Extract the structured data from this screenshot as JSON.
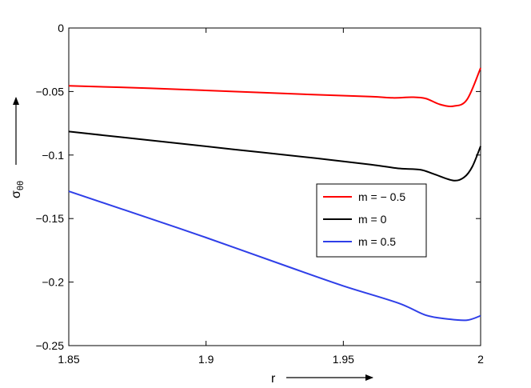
{
  "chart_data": {
    "type": "line",
    "xlabel": "r",
    "ylabel": "σ",
    "ylabel_subscript": "θθ",
    "xlim": [
      1.85,
      2.0
    ],
    "ylim": [
      -0.25,
      0
    ],
    "xticks": [
      1.85,
      1.9,
      1.95,
      2.0
    ],
    "xtick_labels": [
      "1.85",
      "1.9",
      "1.95",
      "2"
    ],
    "yticks": [
      0,
      -0.05,
      -0.1,
      -0.15,
      -0.2,
      -0.25
    ],
    "ytick_labels": [
      "0",
      "−0.05",
      "−0.1",
      "−0.15",
      "−0.2",
      "−0.25"
    ],
    "grid": false,
    "legend_position": "center-right",
    "series": [
      {
        "name": "m = − 0.5",
        "color": "#ff0000",
        "x": [
          1.85,
          1.88,
          1.91,
          1.94,
          1.96,
          1.968,
          1.975,
          1.98,
          1.985,
          1.99,
          1.995,
          2.0
        ],
        "y": [
          -0.0455,
          -0.0475,
          -0.05,
          -0.0525,
          -0.054,
          -0.055,
          -0.0545,
          -0.0555,
          -0.06,
          -0.0615,
          -0.0565,
          -0.0315
        ]
      },
      {
        "name": "m = 0",
        "color": "#000000",
        "x": [
          1.85,
          1.88,
          1.91,
          1.94,
          1.96,
          1.97,
          1.978,
          1.983,
          1.99,
          1.994,
          1.997,
          2.0
        ],
        "y": [
          -0.0815,
          -0.0885,
          -0.0955,
          -0.1025,
          -0.1075,
          -0.1105,
          -0.1115,
          -0.115,
          -0.12,
          -0.1175,
          -0.109,
          -0.093
        ]
      },
      {
        "name": "m = 0.5",
        "color": "#2f3fe8",
        "x": [
          1.85,
          1.87,
          1.9,
          1.93,
          1.95,
          1.97,
          1.98,
          1.988,
          1.995,
          2.0
        ],
        "y": [
          -0.1285,
          -0.143,
          -0.165,
          -0.188,
          -0.203,
          -0.2165,
          -0.226,
          -0.229,
          -0.23,
          -0.2265
        ]
      }
    ]
  }
}
